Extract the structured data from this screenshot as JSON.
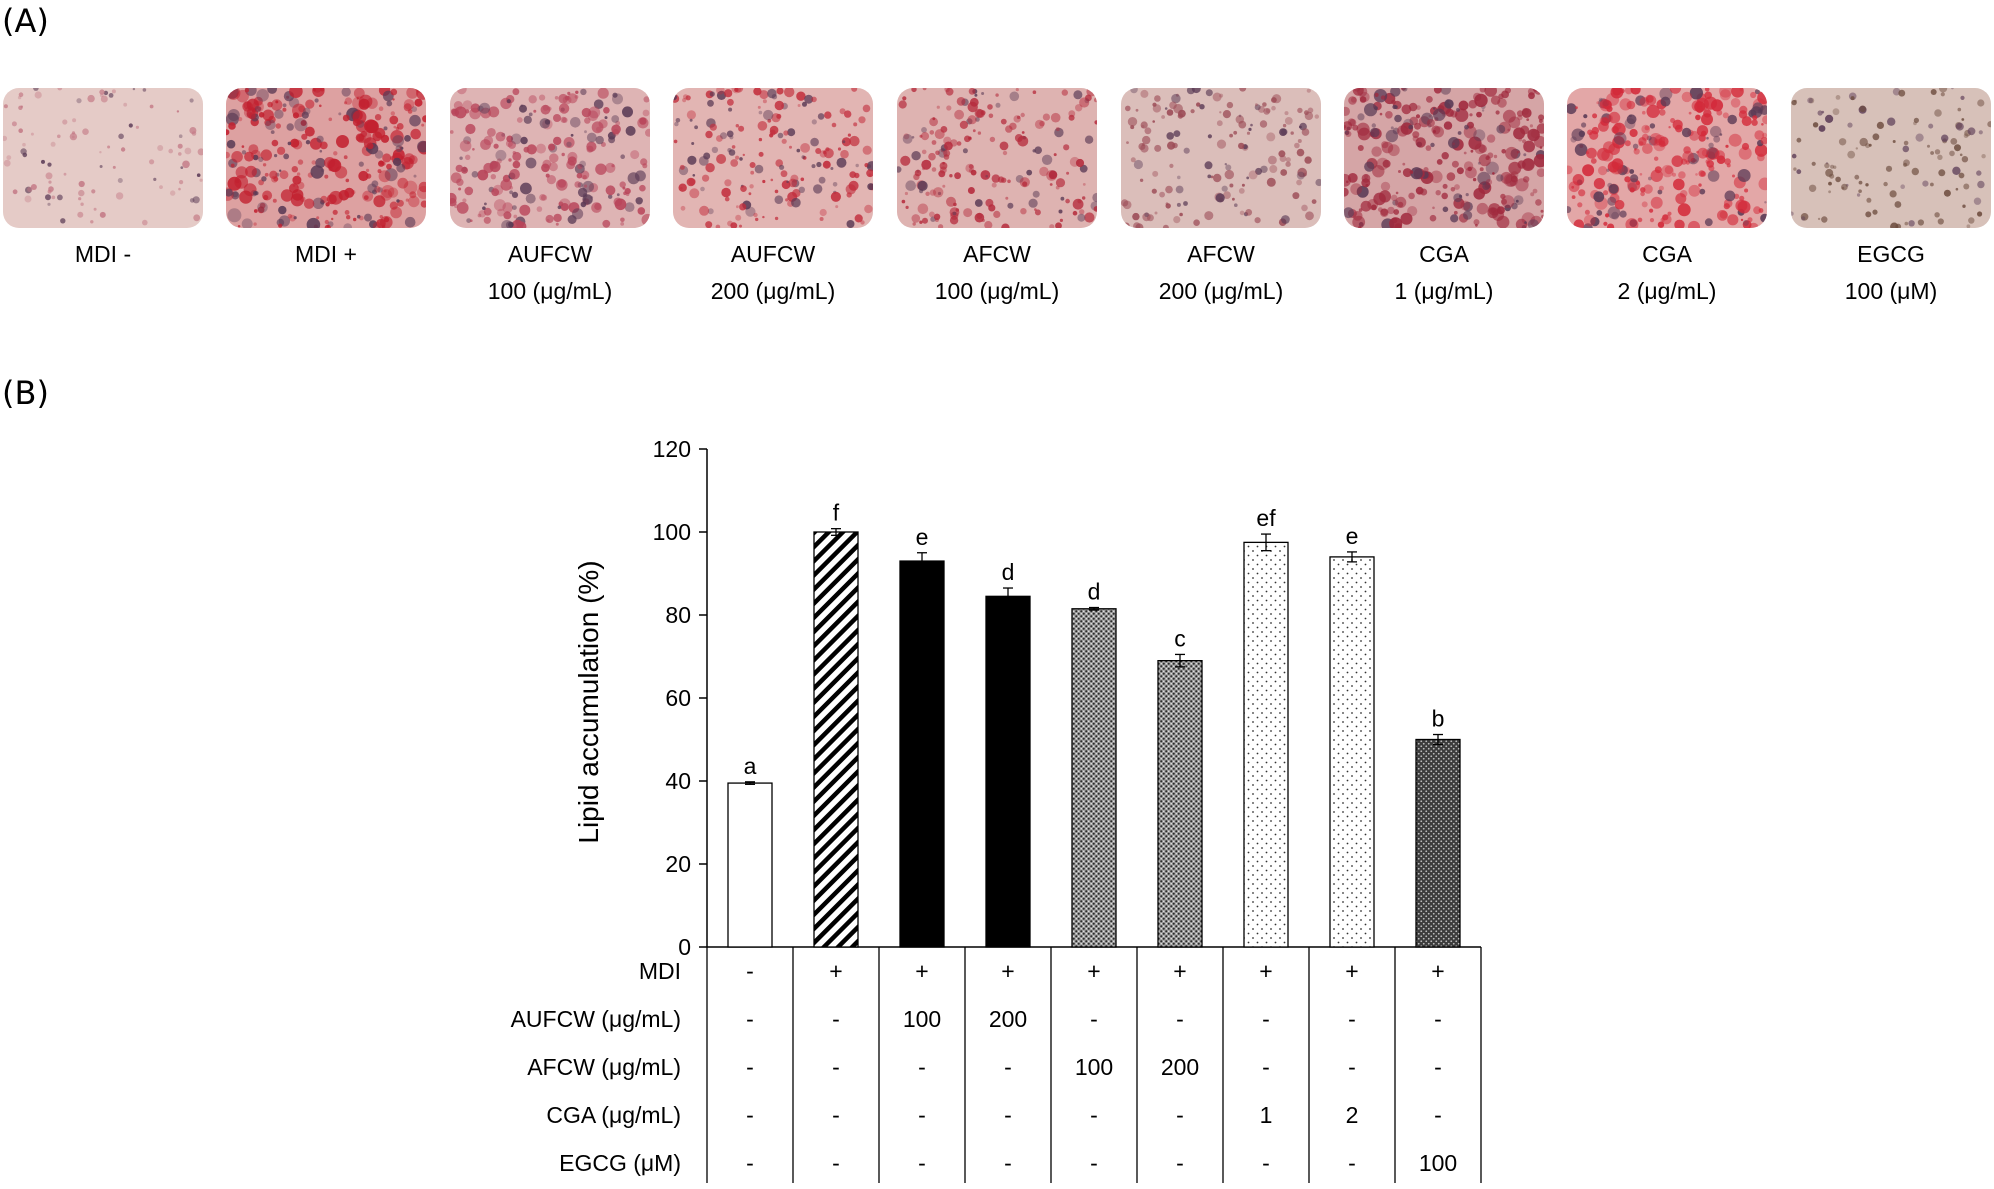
{
  "panel_a_label": "(A)",
  "panel_b_label": "(B)",
  "micrographs": [
    {
      "line1": "MDI -",
      "line2": "",
      "stain": "#c47a86",
      "density": 0.15
    },
    {
      "line1": "MDI +",
      "line2": "",
      "stain": "#c2202f",
      "density": 0.95
    },
    {
      "line1": "AUFCW",
      "line2": "100 (μg/mL)",
      "stain": "#b84459",
      "density": 0.7
    },
    {
      "line1": "AUFCW",
      "line2": "200 (μg/mL)",
      "stain": "#c22c3b",
      "density": 0.5
    },
    {
      "line1": "AFCW",
      "line2": "100 (μg/mL)",
      "stain": "#b52a3b",
      "density": 0.55
    },
    {
      "line1": "AFCW",
      "line2": "200 (μg/mL)",
      "stain": "#9b4a55",
      "density": 0.4
    },
    {
      "line1": "CGA",
      "line2": "1 (μg/mL)",
      "stain": "#a0293d",
      "density": 0.9
    },
    {
      "line1": "CGA",
      "line2": "2 (μg/mL)",
      "stain": "#d32a3a",
      "density": 0.85
    },
    {
      "line1": "EGCG",
      "line2": "100 (μM)",
      "stain": "#6b4a3c",
      "density": 0.25
    }
  ],
  "chart_data": {
    "type": "bar",
    "ylabel": "Lipid accumulation (%)",
    "ylim": [
      0,
      120
    ],
    "yticks": [
      0,
      20,
      40,
      60,
      80,
      100,
      120
    ],
    "grid": false,
    "bars": [
      {
        "value": 39.5,
        "error": 0.3,
        "letter": "a",
        "pattern": "white"
      },
      {
        "value": 100,
        "error": 0.8,
        "letter": "f",
        "pattern": "hatch"
      },
      {
        "value": 93,
        "error": 2.0,
        "letter": "e",
        "pattern": "black"
      },
      {
        "value": 84.5,
        "error": 2.0,
        "letter": "d",
        "pattern": "black"
      },
      {
        "value": 81.5,
        "error": 0.3,
        "letter": "d",
        "pattern": "grid"
      },
      {
        "value": 69,
        "error": 1.5,
        "letter": "c",
        "pattern": "grid"
      },
      {
        "value": 97.5,
        "error": 2.0,
        "letter": "ef",
        "pattern": "dots"
      },
      {
        "value": 94,
        "error": 1.2,
        "letter": "e",
        "pattern": "dots"
      },
      {
        "value": 50,
        "error": 1.2,
        "letter": "b",
        "pattern": "darkgrid"
      }
    ],
    "treatment_table": [
      {
        "label": "MDI",
        "values": [
          "-",
          "+",
          "+",
          "+",
          "+",
          "+",
          "+",
          "+",
          "+"
        ]
      },
      {
        "label": "AUFCW (μg/mL)",
        "values": [
          "-",
          "-",
          "100",
          "200",
          "-",
          "-",
          "-",
          "-",
          "-"
        ]
      },
      {
        "label": "AFCW (μg/mL)",
        "values": [
          "-",
          "-",
          "-",
          "-",
          "100",
          "200",
          "-",
          "-",
          "-"
        ]
      },
      {
        "label": "CGA (μg/mL)",
        "values": [
          "-",
          "-",
          "-",
          "-",
          "-",
          "-",
          "1",
          "2",
          "-"
        ]
      },
      {
        "label": "EGCG (μM)",
        "values": [
          "-",
          "-",
          "-",
          "-",
          "-",
          "-",
          "-",
          "-",
          "100"
        ]
      }
    ]
  }
}
